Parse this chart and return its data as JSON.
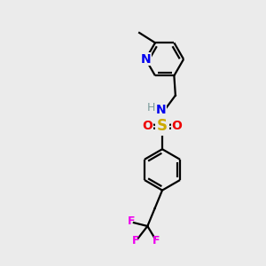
{
  "bg_color": "#ebebeb",
  "atom_colors": {
    "C": "#000000",
    "N": "#0000ee",
    "H": "#7a9a9a",
    "S": "#ccaa00",
    "O": "#ee0000",
    "F": "#ee00ee"
  },
  "line_color": "#000000",
  "line_width": 1.6,
  "font_size": 10,
  "bold_atoms": true
}
